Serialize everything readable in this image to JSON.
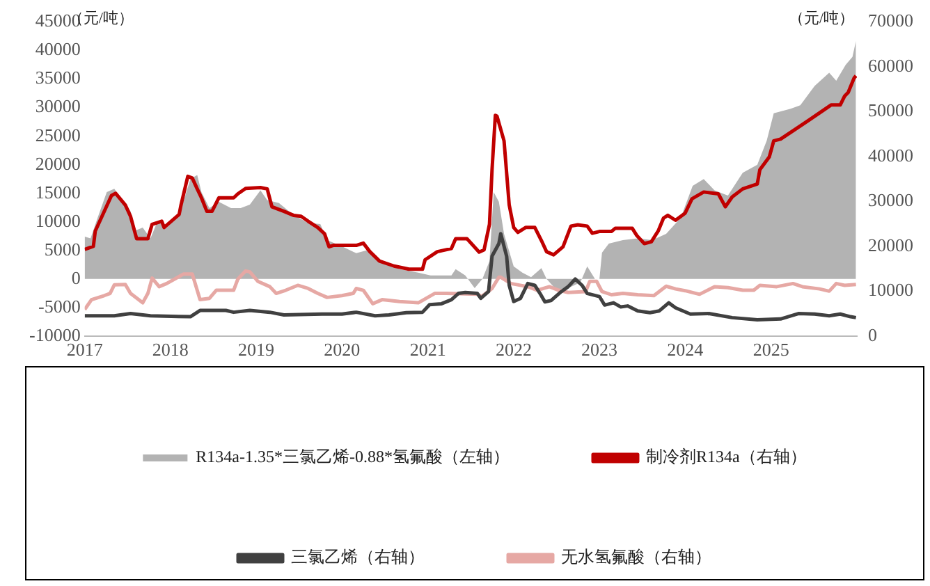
{
  "chart_data": {
    "type": "line",
    "ylabel": "（元/吨）",
    "y2label": "（元/吨）",
    "xlim": [
      "2017-01-01",
      "2026-01-01"
    ],
    "xticks": [
      "2017",
      "2018",
      "2019",
      "2020",
      "2021",
      "2022",
      "2023",
      "2024",
      "2025"
    ],
    "ylim": [
      -10000,
      45000
    ],
    "yticks": [
      -10000,
      -5000,
      0,
      5000,
      10000,
      15000,
      20000,
      25000,
      30000,
      35000,
      40000,
      45000
    ],
    "y2lim": [
      0,
      70000
    ],
    "y2ticks": [
      0,
      10000,
      20000,
      30000,
      40000,
      50000,
      60000,
      70000
    ],
    "grid": false,
    "legend": "bottom",
    "marker": "none",
    "line_style": "solid",
    "series": [
      {
        "name": "R134a-1.35*三氯乙烯-0.88*氢氟酸（左轴）",
        "type": "area",
        "color": "#b3b3b3",
        "x": [
          "2017-01-01",
          "2017-01-26",
          "2017-02-25",
          "2017-04-05",
          "2017-05-07",
          "2017-06-05",
          "2017-07-15",
          "2017-08-07",
          "2017-09-05",
          "2017-10-08",
          "2017-11-07",
          "2017-12-16",
          "2018-02-07",
          "2018-03-27",
          "2018-04-25",
          "2018-05-13",
          "2018-06-16",
          "2018-07-26",
          "2018-09-16",
          "2018-10-27",
          "2018-12-05",
          "2019-01-19",
          "2019-02-17",
          "2019-04-08",
          "2019-06-09",
          "2019-08-10",
          "2019-10-01",
          "2019-10-30",
          "2020-01-01",
          "2020-03-02",
          "2020-04-23",
          "2020-06-09",
          "2020-09-02",
          "2020-11-21",
          "2021-01-12",
          "2021-04-11",
          "2021-04-29",
          "2021-06-09",
          "2021-07-19",
          "2021-08-21",
          "2021-09-20",
          "2021-10-08",
          "2021-10-30",
          "2021-11-21",
          "2022-01-01",
          "2022-02-07",
          "2022-03-16",
          "2022-04-29",
          "2022-05-21",
          "2022-07-01",
          "2022-08-21",
          "2022-10-12",
          "2022-11-10",
          "2022-12-13",
          "2023-01-01",
          "2023-01-12",
          "2023-02-10",
          "2023-04-11",
          "2023-06-13",
          "2023-08-14",
          "2023-10-12",
          "2023-12-13",
          "2024-02-02",
          "2024-03-20",
          "2024-05-05",
          "2024-07-01",
          "2024-09-02",
          "2024-11-03",
          "2024-12-13",
          "2025-01-12",
          "2025-03-25",
          "2025-05-05",
          "2025-07-05",
          "2025-09-05",
          "2025-10-05",
          "2025-11-14",
          "2025-12-13",
          "2025-12-28"
        ],
        "values": [
          7400,
          7100,
          10700,
          15200,
          15800,
          14100,
          11900,
          8500,
          9000,
          7100,
          10100,
          9000,
          11200,
          17500,
          18200,
          15200,
          12400,
          13500,
          12400,
          12400,
          13000,
          15500,
          13800,
          13300,
          11200,
          9800,
          9600,
          6800,
          5700,
          4500,
          5100,
          3100,
          1700,
          1100,
          600,
          600,
          1700,
          600,
          -1600,
          0,
          3100,
          15200,
          13500,
          7900,
          2200,
          1100,
          300,
          1900,
          0,
          -1900,
          -1600,
          -600,
          2200,
          0,
          0,
          4600,
          6200,
          6800,
          7100,
          6800,
          7900,
          10700,
          16300,
          17500,
          15500,
          14600,
          18600,
          20000,
          24200,
          29000,
          29800,
          30400,
          33800,
          36100,
          34700,
          37500,
          38900,
          41700
        ]
      },
      {
        "name": "制冷剂R134a（右轴）",
        "axis": "y2",
        "color": "#c00000",
        "x": [
          "2017-01-01",
          "2017-02-07",
          "2017-02-15",
          "2017-04-25",
          "2017-05-13",
          "2017-06-23",
          "2017-07-15",
          "2017-08-10",
          "2017-09-27",
          "2017-10-15",
          "2017-11-25",
          "2017-12-05",
          "2018-02-07",
          "2018-02-15",
          "2018-03-16",
          "2018-04-04",
          "2018-04-25",
          "2018-05-13",
          "2018-06-05",
          "2018-06-27",
          "2018-07-26",
          "2018-09-27",
          "2018-10-15",
          "2018-11-17",
          "2019-01-19",
          "2019-02-17",
          "2019-03-09",
          "2019-04-29",
          "2019-06-09",
          "2019-07-11",
          "2019-08-10",
          "2019-09-20",
          "2019-10-19",
          "2019-11-07",
          "2019-11-25",
          "2020-03-02",
          "2020-04-01",
          "2020-04-29",
          "2020-06-09",
          "2020-08-10",
          "2020-10-12",
          "2020-12-09",
          "2020-12-20",
          "2021-02-10",
          "2021-04-11",
          "2021-04-29",
          "2021-06-16",
          "2021-08-07",
          "2021-08-28",
          "2021-09-20",
          "2021-10-01",
          "2021-10-15",
          "2021-10-22",
          "2021-11-21",
          "2021-12-13",
          "2022-01-01",
          "2022-01-19",
          "2022-02-21",
          "2022-04-01",
          "2022-04-29",
          "2022-05-21",
          "2022-06-20",
          "2022-07-30",
          "2022-09-02",
          "2022-10-01",
          "2022-11-10",
          "2022-12-02",
          "2023-01-01",
          "2023-02-21",
          "2023-03-09",
          "2023-05-21",
          "2023-06-09",
          "2023-07-11",
          "2023-08-10",
          "2023-09-09",
          "2023-10-01",
          "2023-10-19",
          "2023-11-21",
          "2024-01-01",
          "2024-01-30",
          "2024-03-20",
          "2024-05-21",
          "2024-06-20",
          "2024-07-19",
          "2024-09-02",
          "2024-11-03",
          "2024-11-14",
          "2024-12-24",
          "2025-01-12",
          "2025-02-10",
          "2025-04-11",
          "2025-06-13",
          "2025-07-22",
          "2025-09-13",
          "2025-10-22",
          "2025-11-10",
          "2025-11-25",
          "2025-12-20",
          "2025-12-28"
        ],
        "values": [
          19300,
          20000,
          23400,
          31300,
          31800,
          29200,
          26700,
          21700,
          21700,
          24900,
          25600,
          24200,
          27100,
          29200,
          35600,
          35200,
          32800,
          30800,
          27800,
          27800,
          30800,
          30800,
          31700,
          32900,
          33100,
          32800,
          28800,
          27800,
          26900,
          26700,
          25600,
          24200,
          22800,
          19900,
          20200,
          20200,
          20700,
          18800,
          16700,
          15600,
          14900,
          14900,
          17000,
          18800,
          19500,
          21700,
          21700,
          18700,
          19200,
          24900,
          37100,
          49200,
          49000,
          43500,
          29200,
          24200,
          23100,
          24200,
          24200,
          21300,
          18800,
          18100,
          19900,
          24500,
          24800,
          24500,
          22900,
          23300,
          23300,
          24000,
          24000,
          22400,
          20600,
          21000,
          23500,
          26300,
          26900,
          25800,
          27400,
          30600,
          32100,
          31700,
          28800,
          31000,
          32800,
          33900,
          37100,
          39900,
          43500,
          43900,
          46000,
          48200,
          49600,
          51500,
          51500,
          53500,
          54300,
          57500,
          58000
        ]
      },
      {
        "name": "三氯乙烯（右轴）",
        "axis": "y2",
        "color": "#404040",
        "x": [
          "2017-01-01",
          "2017-05-07",
          "2017-07-15",
          "2017-10-08",
          "2018-03-27",
          "2018-05-07",
          "2018-08-25",
          "2018-09-27",
          "2018-12-05",
          "2019-02-28",
          "2019-04-29",
          "2019-10-08",
          "2020-01-01",
          "2020-03-02",
          "2020-05-21",
          "2020-07-19",
          "2020-10-01",
          "2020-12-09",
          "2021-01-08",
          "2021-02-28",
          "2021-04-11",
          "2021-05-11",
          "2021-06-09",
          "2021-07-30",
          "2021-08-14",
          "2021-09-16",
          "2021-10-01",
          "2021-10-30",
          "2021-11-07",
          "2021-12-02",
          "2021-12-13",
          "2022-01-01",
          "2022-01-30",
          "2022-03-02",
          "2022-04-01",
          "2022-04-23",
          "2022-05-14",
          "2022-06-09",
          "2022-07-23",
          "2022-08-21",
          "2022-09-20",
          "2022-10-19",
          "2022-11-10",
          "2023-01-01",
          "2023-01-23",
          "2023-03-02",
          "2023-04-01",
          "2023-05-01",
          "2023-06-13",
          "2023-08-04",
          "2023-09-13",
          "2023-10-23",
          "2023-11-21",
          "2024-01-23",
          "2024-04-11",
          "2024-07-19",
          "2024-11-03",
          "2025-02-10",
          "2025-04-27",
          "2025-07-05",
          "2025-09-05",
          "2025-10-22",
          "2025-12-05",
          "2025-12-28"
        ],
        "values": [
          4500,
          4500,
          5000,
          4500,
          4300,
          5700,
          5700,
          5300,
          5700,
          5300,
          4700,
          4900,
          4900,
          5300,
          4500,
          4700,
          5200,
          5300,
          7000,
          7200,
          8100,
          9500,
          9700,
          9500,
          8400,
          9900,
          17800,
          20600,
          22800,
          17800,
          11300,
          7700,
          8400,
          11700,
          11300,
          9500,
          7600,
          7900,
          9900,
          11000,
          12700,
          11300,
          9500,
          8800,
          6900,
          7400,
          6500,
          6700,
          5600,
          5200,
          5600,
          7400,
          6300,
          4900,
          5000,
          4100,
          3600,
          3800,
          5000,
          4900,
          4500,
          4900,
          4300,
          4100
        ]
      },
      {
        "name": "无水氢氟酸（右轴）",
        "axis": "y2",
        "color": "#e6a8a4",
        "x": [
          "2017-01-01",
          "2017-01-30",
          "2017-03-25",
          "2017-04-19",
          "2017-05-07",
          "2017-06-23",
          "2017-07-15",
          "2017-09-05",
          "2017-09-27",
          "2017-10-15",
          "2017-11-14",
          "2017-12-16",
          "2018-02-25",
          "2018-04-04",
          "2018-05-07",
          "2018-06-16",
          "2018-07-15",
          "2018-09-27",
          "2018-10-15",
          "2018-11-17",
          "2018-12-05",
          "2019-01-08",
          "2019-02-28",
          "2019-03-27",
          "2019-05-07",
          "2019-06-27",
          "2019-08-10",
          "2019-09-20",
          "2019-10-30",
          "2020-01-01",
          "2020-02-18",
          "2020-03-02",
          "2020-04-01",
          "2020-05-11",
          "2020-06-20",
          "2020-09-02",
          "2020-11-21",
          "2021-01-30",
          "2021-03-20",
          "2021-07-30",
          "2021-08-18",
          "2021-10-01",
          "2021-10-30",
          "2021-11-07",
          "2021-12-20",
          "2022-03-02",
          "2022-04-11",
          "2022-06-02",
          "2022-07-12",
          "2022-08-21",
          "2022-11-03",
          "2022-11-21",
          "2022-12-20",
          "2023-01-12",
          "2023-02-21",
          "2023-04-11",
          "2023-06-13",
          "2023-08-21",
          "2023-10-12",
          "2023-11-21",
          "2024-01-01",
          "2024-03-02",
          "2024-05-05",
          "2024-07-01",
          "2024-09-02",
          "2024-10-19",
          "2024-11-14",
          "2025-01-25",
          "2025-04-04",
          "2025-05-14",
          "2025-07-26",
          "2025-09-05",
          "2025-10-05",
          "2025-11-10",
          "2025-12-28"
        ],
        "values": [
          5900,
          8100,
          9000,
          9500,
          11400,
          11500,
          9500,
          7400,
          9500,
          12900,
          11000,
          11700,
          13800,
          13800,
          8100,
          8400,
          10200,
          10200,
          12700,
          14500,
          14300,
          12200,
          11000,
          9500,
          10200,
          11300,
          10600,
          9500,
          8600,
          9000,
          9500,
          10600,
          10200,
          7200,
          8100,
          7700,
          7400,
          9500,
          9500,
          9300,
          8800,
          10600,
          13100,
          13100,
          11700,
          11000,
          10200,
          11000,
          10200,
          9700,
          9900,
          12200,
          12200,
          9900,
          9200,
          9500,
          9200,
          9000,
          11100,
          10500,
          10100,
          9300,
          11000,
          10800,
          10200,
          10200,
          11300,
          11000,
          11700,
          11000,
          10500,
          10000,
          11700,
          11300,
          11500
        ]
      }
    ]
  }
}
